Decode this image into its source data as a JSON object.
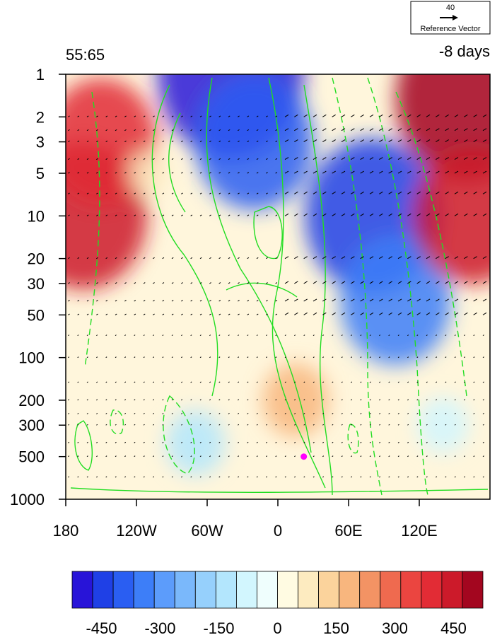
{
  "header": {
    "left_title": "55:65",
    "right_title": "-8 days"
  },
  "reference_vector": {
    "magnitude": "40",
    "label": "Reference Vector"
  },
  "chart_data": {
    "type": "heatmap",
    "title": "",
    "xlabel": "",
    "ylabel": "",
    "x_range": [
      -180,
      180
    ],
    "y_range": [
      1000,
      1
    ],
    "y_scale": "log",
    "x_ticks": [
      "180",
      "120W",
      "60W",
      "0",
      "60E",
      "120E"
    ],
    "x_tick_values": [
      -180,
      -120,
      -60,
      0,
      60,
      120
    ],
    "y_ticks": [
      "1",
      "2",
      "3",
      "5",
      "10",
      "20",
      "30",
      "50",
      "100",
      "200",
      "300",
      "500",
      "1000"
    ],
    "y_tick_values": [
      1,
      2,
      3,
      5,
      10,
      20,
      30,
      50,
      100,
      200,
      300,
      500,
      1000
    ],
    "colorbar": {
      "labels": [
        "-450",
        "-300",
        "-150",
        "0",
        "150",
        "300",
        "450"
      ],
      "label_values": [
        -450,
        -300,
        -150,
        0,
        150,
        300,
        450
      ],
      "levels": [
        -525,
        -475,
        -425,
        -375,
        -325,
        -275,
        -225,
        -175,
        -125,
        -75,
        -25,
        25,
        75,
        125,
        175,
        225,
        275,
        325,
        375,
        425,
        475,
        525
      ],
      "colors": [
        "#2814d8",
        "#1f40e6",
        "#2a5ef2",
        "#3d7ef8",
        "#5c9cfb",
        "#7ab8fb",
        "#96d0fc",
        "#b3e6fd",
        "#d2f6fe",
        "#effefd",
        "#fffbe2",
        "#fdebc0",
        "#fbd39c",
        "#f8b67e",
        "#f39364",
        "#ef6a4f",
        "#eb4540",
        "#e22c35",
        "#cc1a2a",
        "#a3061f"
      ]
    },
    "fill_field_samples": [
      {
        "lon": -165,
        "p": 10,
        "value": 420
      },
      {
        "lon": -150,
        "p": 3,
        "value": 350
      },
      {
        "lon": -110,
        "p": 5,
        "value": 50
      },
      {
        "lon": -40,
        "p": 1,
        "value": -500
      },
      {
        "lon": -20,
        "p": 3,
        "value": -380
      },
      {
        "lon": 80,
        "p": 10,
        "value": -450
      },
      {
        "lon": 100,
        "p": 40,
        "value": -350
      },
      {
        "lon": 160,
        "p": 1.5,
        "value": 480
      },
      {
        "lon": 165,
        "p": 10,
        "value": 380
      },
      {
        "lon": 15,
        "p": 200,
        "value": 160
      },
      {
        "lon": -70,
        "p": 400,
        "value": -130
      },
      {
        "lon": 140,
        "p": 300,
        "value": -100
      }
    ],
    "marker": {
      "lon": 22,
      "p": 500,
      "color": "#ff00ff"
    },
    "contour_color": "#22dd22"
  }
}
